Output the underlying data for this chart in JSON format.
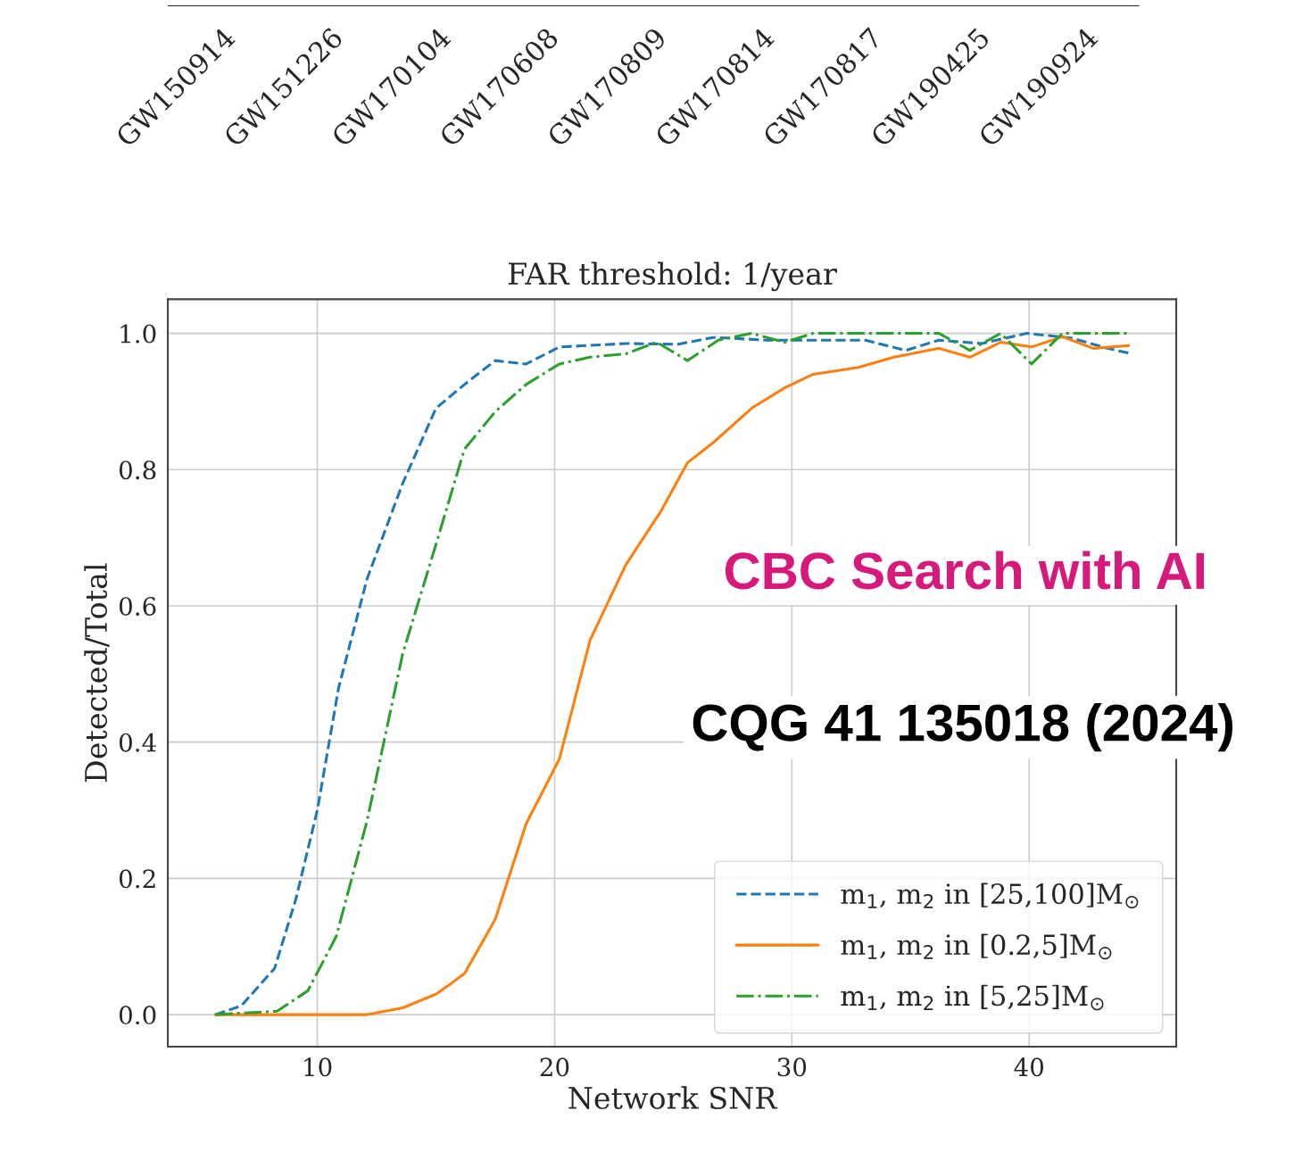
{
  "chart_data": [
    {
      "type": "other",
      "categories": [
        "GW150914",
        "GW151226",
        "GW170104",
        "GW170608",
        "GW170809",
        "GW170814",
        "GW170817",
        "GW190425",
        "GW190924"
      ]
    },
    {
      "type": "line",
      "title": "FAR threshold: 1/year",
      "xlabel": "Network SNR",
      "ylabel": "Detected/Total",
      "xlim": [
        3.7,
        46.2
      ],
      "ylim": [
        -0.047,
        1.05
      ],
      "xticks": [
        10,
        20,
        30,
        40
      ],
      "yticks": [
        {
          "value": 0,
          "label": "0.0"
        },
        {
          "value": 0.2,
          "label": "0.2"
        },
        {
          "value": 0.4,
          "label": "0.4"
        },
        {
          "value": 0.6,
          "label": "0.6"
        },
        {
          "value": 0.8,
          "label": "0.8"
        },
        {
          "value": 1,
          "label": "1.0"
        }
      ],
      "grid": true,
      "legend": "bottom right",
      "series": [
        {
          "name": "m$_{1}$, m$_{2}$ in [25,100]M$_{⊙}$",
          "color": "#1f77b4",
          "line_style": "dashed",
          "x": [
            5.7,
            6.8,
            8.2,
            9.1,
            10,
            10.9,
            12.1,
            13.6,
            15,
            16.2,
            17.5,
            18.8,
            20.2,
            23,
            25.2,
            26.7,
            29,
            31.3,
            33.1,
            34.8,
            36.2,
            38,
            39.9,
            41.8,
            43.3,
            44.2
          ],
          "values": [
            0,
            0.013,
            0.068,
            0.17,
            0.3,
            0.48,
            0.64,
            0.78,
            0.89,
            0.925,
            0.96,
            0.955,
            0.98,
            0.985,
            0.984,
            0.994,
            0.99,
            0.99,
            0.99,
            0.975,
            0.99,
            0.985,
            1.0,
            0.993,
            0.978,
            0.971
          ]
        },
        {
          "name": "m$_{1}$, m$_{2}$ in [0.2,5]M$_{⊙}$",
          "color": "#ff7f0e",
          "line_style": "solid",
          "x": [
            5.7,
            12.1,
            13.6,
            15,
            16.2,
            17.5,
            18.8,
            20.2,
            21.5,
            23,
            24.5,
            25.6,
            26.7,
            28.3,
            29.7,
            30.9,
            32.8,
            34.3,
            36.2,
            37.5,
            38.8,
            40.1,
            41.4,
            42.7,
            44.2
          ],
          "values": [
            0,
            0,
            0.01,
            0.03,
            0.06,
            0.14,
            0.28,
            0.375,
            0.55,
            0.66,
            0.74,
            0.81,
            0.84,
            0.89,
            0.92,
            0.94,
            0.95,
            0.965,
            0.978,
            0.965,
            0.987,
            0.98,
            0.995,
            0.978,
            0.982
          ]
        },
        {
          "name": "m$_{1}$, m$_{2}$ in [5,25]M$_{⊙}$",
          "color": "#2ca02c",
          "line_style": "dashdot",
          "x": [
            5.7,
            8.3,
            9.6,
            10.8,
            12.1,
            13.6,
            15,
            16.2,
            17.5,
            18.8,
            20.2,
            21.5,
            23,
            24.3,
            25.6,
            26.9,
            28.3,
            29.7,
            30.9,
            36.2,
            37.5,
            38.8,
            40.1,
            41.4,
            44.2
          ],
          "values": [
            0,
            0.005,
            0.035,
            0.115,
            0.285,
            0.53,
            0.69,
            0.83,
            0.885,
            0.925,
            0.955,
            0.965,
            0.97,
            0.987,
            0.96,
            0.99,
            1.0,
            0.987,
            1.0,
            1.0,
            0.975,
            1.0,
            0.955,
            1.0,
            1.0
          ]
        }
      ],
      "annotations": [
        "CBC Search with AI",
        "CQG 41 135018 (2024)"
      ]
    }
  ]
}
